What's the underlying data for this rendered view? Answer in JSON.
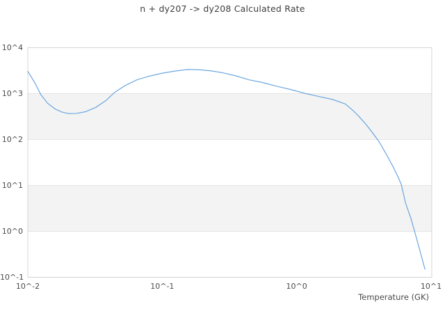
{
  "figure": {
    "background": "#ffffff"
  },
  "chart_data": {
    "type": "line",
    "title": "n + dy207 -> dy208 Calculated Rate",
    "xlabel": "Temperature (GK)",
    "ylabel": "",
    "x_scale": "log",
    "y_scale": "log",
    "xlim": [
      0.01,
      10.12
    ],
    "ylim": [
      0.1,
      10000
    ],
    "x_tick_values": [
      0.01,
      0.1,
      1,
      10
    ],
    "x_tick_labels": [
      "10^-2",
      "10^-1",
      "10^0",
      "10^1"
    ],
    "y_tick_values": [
      0.1,
      1,
      10,
      100,
      1000,
      10000
    ],
    "y_tick_labels": [
      "10^-1",
      "10^0",
      "10^1",
      "10^2",
      "10^3",
      "10^4"
    ],
    "grid": "horizontal decade lines with alternating shaded bands",
    "shaded_bands_y": [
      [
        1,
        10
      ],
      [
        100,
        1000
      ]
    ],
    "legend": "none",
    "colors": {
      "line": "#5d9edd",
      "band_fill": "#f3f3f3",
      "gridline": "#e4e4e4",
      "frame": "#d5d5d5",
      "title_text": "#3d3d3d",
      "tick_text": "#4a4a4a"
    },
    "series": [
      {
        "name": "calculated rate",
        "points": [
          [
            0.01,
            3050
          ],
          [
            0.0113,
            1700
          ],
          [
            0.0125,
            950
          ],
          [
            0.014,
            620
          ],
          [
            0.016,
            460
          ],
          [
            0.018,
            395
          ],
          [
            0.02,
            368
          ],
          [
            0.023,
            370
          ],
          [
            0.027,
            405
          ],
          [
            0.032,
            500
          ],
          [
            0.038,
            700
          ],
          [
            0.044,
            1050
          ],
          [
            0.053,
            1500
          ],
          [
            0.065,
            2000
          ],
          [
            0.08,
            2400
          ],
          [
            0.1,
            2780
          ],
          [
            0.125,
            3100
          ],
          [
            0.155,
            3350
          ],
          [
            0.19,
            3300
          ],
          [
            0.23,
            3130
          ],
          [
            0.28,
            2850
          ],
          [
            0.35,
            2450
          ],
          [
            0.44,
            2000
          ],
          [
            0.55,
            1760
          ],
          [
            0.7,
            1460
          ],
          [
            0.9,
            1230
          ],
          [
            1.15,
            1010
          ],
          [
            1.45,
            870
          ],
          [
            1.85,
            745
          ],
          [
            2.3,
            595
          ],
          [
            2.6,
            440
          ],
          [
            2.9,
            320
          ],
          [
            3.25,
            220
          ],
          [
            3.65,
            143
          ],
          [
            4.1,
            90
          ],
          [
            4.6,
            50
          ],
          [
            5.2,
            26
          ],
          [
            5.7,
            15
          ],
          [
            6.0,
            10.5
          ],
          [
            6.45,
            4.2
          ],
          [
            7.1,
            1.86
          ],
          [
            7.7,
            0.8
          ],
          [
            8.3,
            0.36
          ],
          [
            9.0,
            0.15
          ]
        ]
      }
    ]
  }
}
